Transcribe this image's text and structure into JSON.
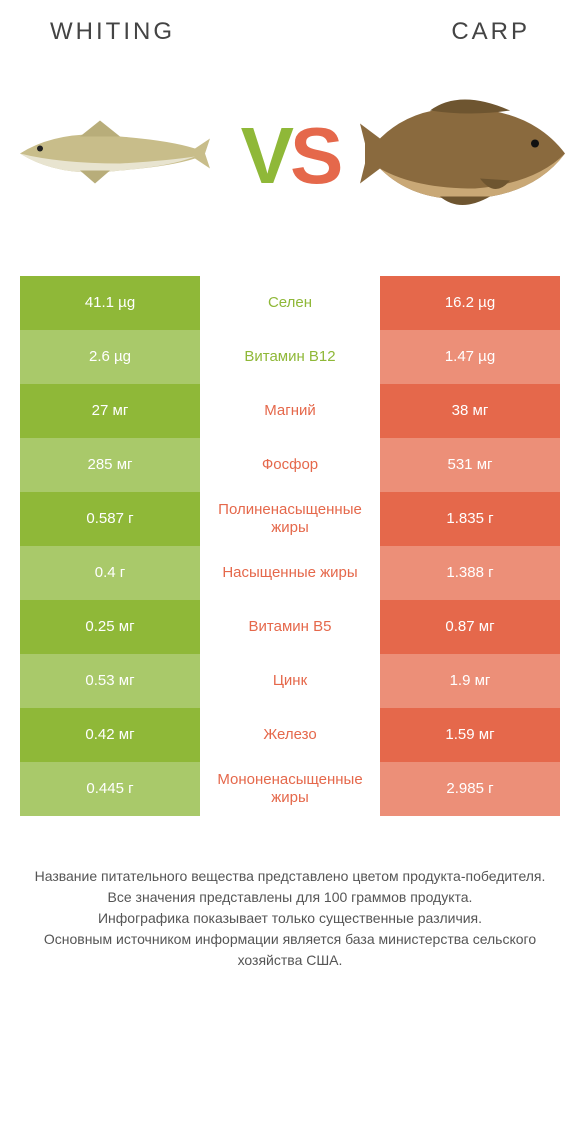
{
  "header": {
    "left": "WHITING",
    "right": "CARP"
  },
  "vs": {
    "v": "V",
    "s": "S"
  },
  "colors": {
    "left_full": "#8fb838",
    "left_dim": "#a9c96a",
    "right_full": "#e5684b",
    "right_dim": "#ec8f78",
    "mid_text_left": "#8fb838",
    "mid_text_right": "#e5684b",
    "fish_left_body": "#c8bd8a",
    "fish_left_belly": "#e8e4d0",
    "fish_right_body": "#8a6a3e",
    "fish_right_belly": "#c9a876"
  },
  "rows": [
    {
      "nutrient": "Селен",
      "left": "41.1 µg",
      "right": "16.2 µg",
      "winner": "left"
    },
    {
      "nutrient": "Витамин B12",
      "left": "2.6 µg",
      "right": "1.47 µg",
      "winner": "left"
    },
    {
      "nutrient": "Магний",
      "left": "27 мг",
      "right": "38 мг",
      "winner": "right"
    },
    {
      "nutrient": "Фосфор",
      "left": "285 мг",
      "right": "531 мг",
      "winner": "right"
    },
    {
      "nutrient": "Полиненасыщенные жиры",
      "left": "0.587 г",
      "right": "1.835 г",
      "winner": "right"
    },
    {
      "nutrient": "Насыщенные жиры",
      "left": "0.4 г",
      "right": "1.388 г",
      "winner": "right"
    },
    {
      "nutrient": "Витамин B5",
      "left": "0.25 мг",
      "right": "0.87 мг",
      "winner": "right"
    },
    {
      "nutrient": "Цинк",
      "left": "0.53 мг",
      "right": "1.9 мг",
      "winner": "right"
    },
    {
      "nutrient": "Железо",
      "left": "0.42 мг",
      "right": "1.59 мг",
      "winner": "right"
    },
    {
      "nutrient": "Мононенасыщенные жиры",
      "left": "0.445 г",
      "right": "2.985 г",
      "winner": "right"
    }
  ],
  "footer": {
    "l1": "Название питательного вещества представлено цветом продукта-победителя.",
    "l2": "Все значения представлены для 100 граммов продукта.",
    "l3": "Инфографика показывает только существенные различия.",
    "l4": "Основным источником информации является база министерства сельского хозяйства США."
  }
}
